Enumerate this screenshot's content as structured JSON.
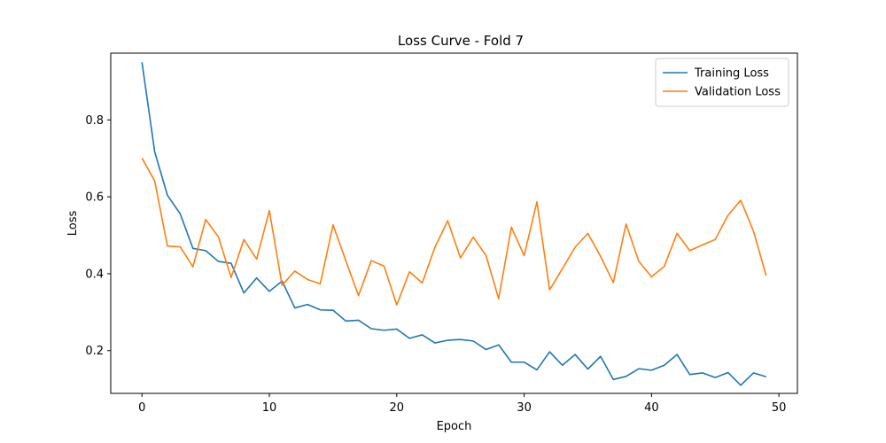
{
  "chart_data": {
    "type": "line",
    "title": "Loss Curve - Fold 7",
    "xlabel": "Epoch",
    "ylabel": "Loss",
    "xlim": [
      -2.45,
      51.45
    ],
    "ylim": [
      0.0888,
      0.9736
    ],
    "xticks": [
      0,
      10,
      20,
      30,
      40,
      50
    ],
    "yticks": [
      0.2,
      0.4,
      0.6,
      0.8
    ],
    "grid": false,
    "legend_position": "top-right",
    "x": [
      0,
      1,
      2,
      3,
      4,
      5,
      6,
      7,
      8,
      9,
      10,
      11,
      12,
      13,
      14,
      15,
      16,
      17,
      18,
      19,
      20,
      21,
      22,
      23,
      24,
      25,
      26,
      27,
      28,
      29,
      30,
      31,
      32,
      33,
      34,
      35,
      36,
      37,
      38,
      39,
      40,
      41,
      42,
      43,
      44,
      45,
      46,
      47,
      48,
      49
    ],
    "series": [
      {
        "name": "Training Loss",
        "color": "#1f77b4",
        "values": [
          0.95,
          0.717,
          0.604,
          0.556,
          0.466,
          0.46,
          0.432,
          0.427,
          0.35,
          0.389,
          0.354,
          0.381,
          0.311,
          0.32,
          0.306,
          0.305,
          0.277,
          0.279,
          0.257,
          0.253,
          0.256,
          0.232,
          0.241,
          0.22,
          0.227,
          0.229,
          0.225,
          0.203,
          0.215,
          0.17,
          0.17,
          0.15,
          0.197,
          0.162,
          0.19,
          0.152,
          0.185,
          0.125,
          0.133,
          0.153,
          0.149,
          0.162,
          0.19,
          0.138,
          0.142,
          0.13,
          0.143,
          0.11,
          0.142,
          0.132
        ]
      },
      {
        "name": "Validation Loss",
        "color": "#ff7f0e",
        "values": [
          0.701,
          0.641,
          0.472,
          0.47,
          0.418,
          0.541,
          0.496,
          0.39,
          0.489,
          0.438,
          0.564,
          0.37,
          0.407,
          0.385,
          0.374,
          0.527,
          0.434,
          0.343,
          0.434,
          0.42,
          0.319,
          0.405,
          0.376,
          0.469,
          0.538,
          0.441,
          0.495,
          0.448,
          0.335,
          0.521,
          0.447,
          0.587,
          0.358,
          0.413,
          0.469,
          0.505,
          0.445,
          0.377,
          0.529,
          0.432,
          0.392,
          0.419,
          0.505,
          0.46,
          0.475,
          0.489,
          0.552,
          0.591,
          0.511,
          0.395
        ]
      }
    ]
  }
}
